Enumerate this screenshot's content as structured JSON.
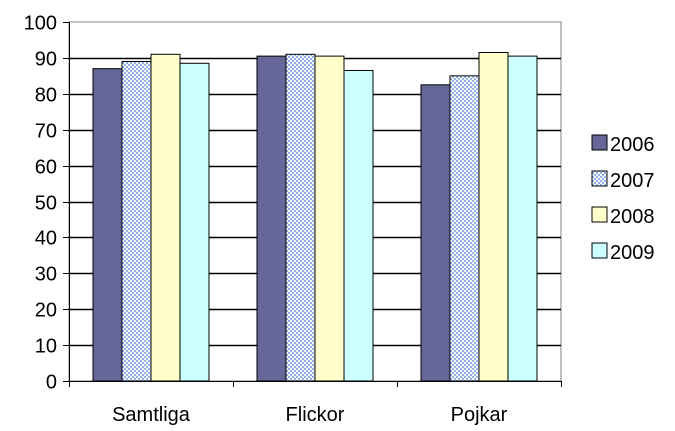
{
  "chart_data": {
    "type": "bar",
    "title": "",
    "xlabel": "",
    "ylabel": "",
    "categories": [
      "Samtliga",
      "Flickor",
      "Pojkar"
    ],
    "series": [
      {
        "name": "2006",
        "values": [
          87,
          90.5,
          82.5
        ],
        "color": "#666699",
        "pattern": "solid"
      },
      {
        "name": "2007",
        "values": [
          89,
          91,
          85
        ],
        "color": "#ccdcff",
        "pattern": "dotted"
      },
      {
        "name": "2008",
        "values": [
          91,
          90.5,
          91.5
        ],
        "color": "#ffffcc",
        "pattern": "solid"
      },
      {
        "name": "2009",
        "values": [
          88.5,
          86.5,
          90.5
        ],
        "color": "#ccffff",
        "pattern": "solid"
      }
    ],
    "ylim": [
      0,
      100
    ],
    "yticks": [
      "0",
      "10",
      "20",
      "30",
      "40",
      "50",
      "60",
      "70",
      "80",
      "90",
      "100"
    ],
    "grid": true,
    "legend": "right"
  }
}
